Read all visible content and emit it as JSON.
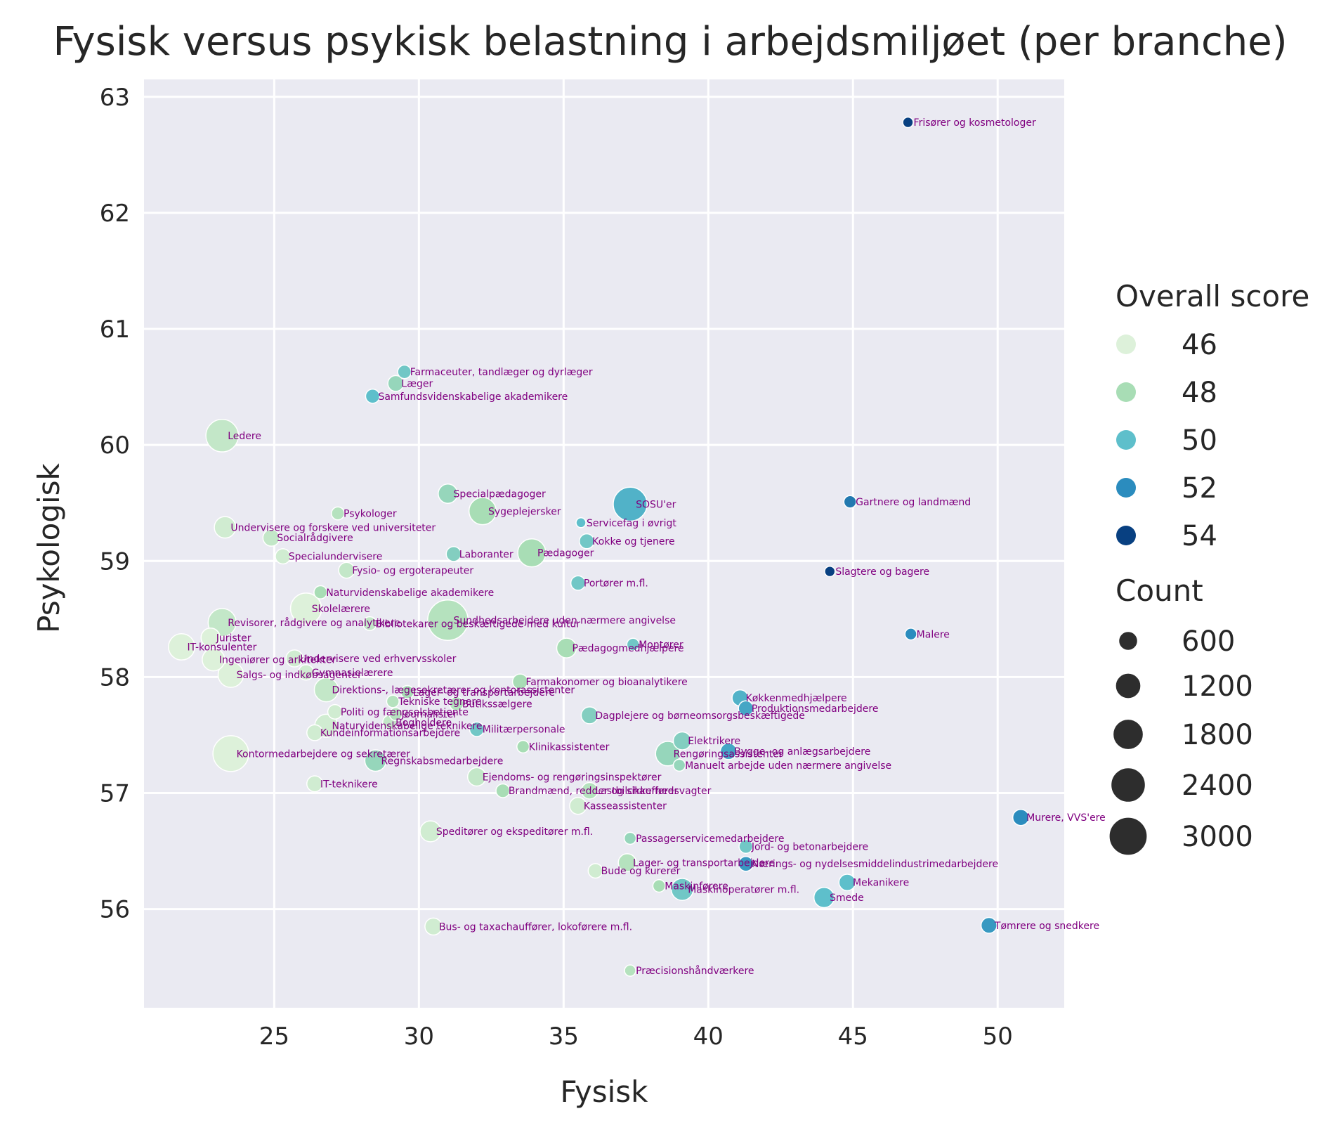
{
  "chart_data": {
    "type": "scatter",
    "title": "Fysisk versus psykisk belastning i arbejdsmiljøet (per branche)",
    "xlabel": "Fysisk",
    "ylabel": "Psykologisk",
    "xlim": [
      20.5,
      52.3
    ],
    "ylim": [
      55.15,
      63.15
    ],
    "xticks": [
      "25",
      "30",
      "35",
      "40",
      "45",
      "50"
    ],
    "yticks": [
      "56",
      "57",
      "58",
      "59",
      "60",
      "61",
      "62",
      "63"
    ],
    "grid": true,
    "legend_position": "right",
    "hue_title": "Overall score",
    "size_title": "Count",
    "hue_legend": [
      {
        "label": "46",
        "color": "#ddf1da"
      },
      {
        "label": "48",
        "color": "#a8ddb5"
      },
      {
        "label": "50",
        "color": "#5ebfcb"
      },
      {
        "label": "52",
        "color": "#2b8cbe"
      },
      {
        "label": "54",
        "color": "#084081"
      }
    ],
    "size_legend": [
      {
        "label": "600",
        "count": 600
      },
      {
        "label": "1200",
        "count": 1200
      },
      {
        "label": "1800",
        "count": 1800
      },
      {
        "label": "2400",
        "count": 2400
      },
      {
        "label": "3000",
        "count": 3000
      }
    ],
    "points": [
      {
        "label": "Frisører og kosmetologer",
        "x": 46.9,
        "y": 62.78,
        "score": 54.5,
        "count": 120
      },
      {
        "label": "Farmaceuter, tandlæger og dyrlæger",
        "x": 29.5,
        "y": 60.63,
        "score": 49.5,
        "count": 250
      },
      {
        "label": "Læger",
        "x": 29.2,
        "y": 60.53,
        "score": 48.5,
        "count": 380
      },
      {
        "label": "Samfundsvidenskabelige akademikere",
        "x": 28.4,
        "y": 60.42,
        "score": 50.0,
        "count": 280
      },
      {
        "label": "Ledere",
        "x": 23.2,
        "y": 60.08,
        "score": 47.0,
        "count": 2100
      },
      {
        "label": "Specialpædagoger",
        "x": 31.0,
        "y": 59.58,
        "score": 48.5,
        "count": 620
      },
      {
        "label": "SOSU'er",
        "x": 37.3,
        "y": 59.49,
        "score": 50.5,
        "count": 2300
      },
      {
        "label": "Gartnere og landmænd",
        "x": 44.9,
        "y": 59.51,
        "score": 52.5,
        "count": 200
      },
      {
        "label": "Sygeplejersker",
        "x": 32.2,
        "y": 59.43,
        "score": 48.0,
        "count": 1400
      },
      {
        "label": "Psykologer",
        "x": 27.2,
        "y": 59.41,
        "score": 47.5,
        "count": 220
      },
      {
        "label": "Servicefag i øvrigt",
        "x": 35.6,
        "y": 59.33,
        "score": 50.0,
        "count": 100
      },
      {
        "label": "Undervisere og forskere ved universiteter",
        "x": 23.3,
        "y": 59.29,
        "score": 46.5,
        "count": 800
      },
      {
        "label": "Socialrådgivere",
        "x": 24.9,
        "y": 59.2,
        "score": 47.0,
        "count": 440
      },
      {
        "label": "Kokke og tjenere",
        "x": 35.8,
        "y": 59.17,
        "score": 49.5,
        "count": 320
      },
      {
        "label": "Laboranter",
        "x": 31.2,
        "y": 59.06,
        "score": 49.0,
        "count": 320
      },
      {
        "label": "Pædagoger",
        "x": 33.9,
        "y": 59.07,
        "score": 48.0,
        "count": 1500
      },
      {
        "label": "Specialundervisere",
        "x": 25.3,
        "y": 59.04,
        "score": 46.5,
        "count": 340
      },
      {
        "label": "Slagtere og bagere",
        "x": 44.2,
        "y": 58.91,
        "score": 54.0,
        "count": 120
      },
      {
        "label": "Fysio- og ergoterapeuter",
        "x": 27.5,
        "y": 58.92,
        "score": 47.0,
        "count": 380
      },
      {
        "label": "Portører m.fl.",
        "x": 35.5,
        "y": 58.81,
        "score": 49.5,
        "count": 300
      },
      {
        "label": "Naturvidenskabelige akademikere",
        "x": 26.6,
        "y": 58.73,
        "score": 48.0,
        "count": 230
      },
      {
        "label": "Skolelærere",
        "x": 26.1,
        "y": 58.59,
        "score": 45.5,
        "count": 1900
      },
      {
        "label": "Sundhedsarbejdere uden nærmere angivelse",
        "x": 31.0,
        "y": 58.49,
        "score": 47.5,
        "count": 3400
      },
      {
        "label": "Revisorer, rådgivere og analytikere",
        "x": 23.2,
        "y": 58.47,
        "score": 47.0,
        "count": 1500
      },
      {
        "label": "Bibliotekarer og beskæftigede med kultur",
        "x": 28.3,
        "y": 58.46,
        "score": 47.0,
        "count": 260
      },
      {
        "label": "Malere",
        "x": 47.0,
        "y": 58.37,
        "score": 52.0,
        "count": 170
      },
      {
        "label": "Jurister",
        "x": 22.8,
        "y": 58.34,
        "score": 45.5,
        "count": 600
      },
      {
        "label": "Montører",
        "x": 37.4,
        "y": 58.28,
        "score": 49.5,
        "count": 200
      },
      {
        "label": "IT-konsulenter",
        "x": 21.8,
        "y": 58.26,
        "score": 45.5,
        "count": 1300
      },
      {
        "label": "Pædagogmedhjælpere",
        "x": 35.1,
        "y": 58.25,
        "score": 48.0,
        "count": 650
      },
      {
        "label": "Undervisere ved erhvervsskoler",
        "x": 25.7,
        "y": 58.16,
        "score": 46.5,
        "count": 450
      },
      {
        "label": "Ingeniører og arkitekter",
        "x": 22.9,
        "y": 58.15,
        "score": 46.0,
        "count": 900
      },
      {
        "label": "Gymnasielærere",
        "x": 26.1,
        "y": 58.04,
        "score": 46.5,
        "count": 350
      },
      {
        "label": "Salgs- og indkøbsagenter",
        "x": 23.5,
        "y": 58.02,
        "score": 45.5,
        "count": 1200
      },
      {
        "label": "Farmakonomer og bioanalytikere",
        "x": 33.5,
        "y": 57.96,
        "score": 48.0,
        "count": 350
      },
      {
        "label": "Direktions-, lægesekretærer og kontorassistenter",
        "x": 26.8,
        "y": 57.89,
        "score": 47.0,
        "count": 1050
      },
      {
        "label": "Lager- og transportarbejdere",
        "x": 29.6,
        "y": 57.87,
        "score": 48.0,
        "count": 230
      },
      {
        "label": "Køkkenmedhjælpere",
        "x": 41.1,
        "y": 57.82,
        "score": 50.5,
        "count": 400
      },
      {
        "label": "Tekniske tegnere",
        "x": 29.1,
        "y": 57.79,
        "score": 47.5,
        "count": 200
      },
      {
        "label": "Butikssælgere",
        "x": 31.3,
        "y": 57.77,
        "score": 47.5,
        "count": 280
      },
      {
        "label": "Produktionsmedarbejdere",
        "x": 41.3,
        "y": 57.73,
        "score": 51.0,
        "count": 330
      },
      {
        "label": "Politi og fængselsbetjente",
        "x": 27.1,
        "y": 57.7,
        "score": 46.5,
        "count": 300
      },
      {
        "label": "Journalister",
        "x": 29.2,
        "y": 57.68,
        "score": 47.5,
        "count": 220
      },
      {
        "label": "Dagplejere og børneomsorgsbeskæftigede",
        "x": 35.9,
        "y": 57.67,
        "score": 49.0,
        "count": 450
      },
      {
        "label": "Bogholdere",
        "x": 29.0,
        "y": 57.61,
        "score": 47.0,
        "count": 300
      },
      {
        "label": "Naturvidenskabelige teknikere",
        "x": 26.8,
        "y": 57.58,
        "score": 46.5,
        "count": 950
      },
      {
        "label": "Militærpersonale",
        "x": 32.0,
        "y": 57.55,
        "score": 49.5,
        "count": 300
      },
      {
        "label": "Kundeinformationsarbejdere",
        "x": 26.4,
        "y": 57.52,
        "score": 46.5,
        "count": 380
      },
      {
        "label": "Elektrikere",
        "x": 39.1,
        "y": 57.45,
        "score": 49.0,
        "count": 520
      },
      {
        "label": "Klinikassistenter",
        "x": 33.6,
        "y": 57.4,
        "score": 48.0,
        "count": 200
      },
      {
        "label": "Bygge- og anlægsarbejdere",
        "x": 40.7,
        "y": 57.36,
        "score": 51.0,
        "count": 420
      },
      {
        "label": "Rengøringsassistenter",
        "x": 38.6,
        "y": 57.34,
        "score": 48.5,
        "count": 1100
      },
      {
        "label": "Kontormedarbejdere og sekretærer",
        "x": 23.5,
        "y": 57.34,
        "score": 45.5,
        "count": 2600
      },
      {
        "label": "Regnskabsmedarbejdere",
        "x": 28.5,
        "y": 57.28,
        "score": 48.5,
        "count": 800
      },
      {
        "label": "Manuelt arbejde uden nærmere angivelse",
        "x": 39.0,
        "y": 57.24,
        "score": 48.5,
        "count": 180
      },
      {
        "label": "Ejendoms- og rengøringsinspektører",
        "x": 32.0,
        "y": 57.14,
        "score": 47.0,
        "count": 550
      },
      {
        "label": "IT-teknikere",
        "x": 26.4,
        "y": 57.08,
        "score": 46.5,
        "count": 380
      },
      {
        "label": "Brandmænd, redder og sikkerhedsvagter",
        "x": 32.9,
        "y": 57.02,
        "score": 48.0,
        "count": 260
      },
      {
        "label": "Lastbilchauffører",
        "x": 35.9,
        "y": 57.02,
        "score": 47.5,
        "count": 420
      },
      {
        "label": "Kasseassistenter",
        "x": 35.5,
        "y": 56.89,
        "score": 46.5,
        "count": 450
      },
      {
        "label": "Murere, VVS'ere",
        "x": 50.8,
        "y": 56.79,
        "score": 52.0,
        "count": 400
      },
      {
        "label": "Speditører og ekspeditører m.fl.",
        "x": 30.4,
        "y": 56.67,
        "score": 46.5,
        "count": 750
      },
      {
        "label": "Passagerservicemedarbejdere",
        "x": 37.3,
        "y": 56.61,
        "score": 48.5,
        "count": 180
      },
      {
        "label": "Jord- og betonarbejdere",
        "x": 41.3,
        "y": 56.54,
        "score": 49.5,
        "count": 260
      },
      {
        "label": "Lager- og transportarbejdere",
        "x": 37.2,
        "y": 56.4,
        "score": 47.5,
        "count": 520
      },
      {
        "label": "Nærings- og nydelsesmiddelindustrimedarbejdere",
        "x": 41.3,
        "y": 56.39,
        "score": 51.5,
        "count": 320
      },
      {
        "label": "Bude og kurerer",
        "x": 36.1,
        "y": 56.33,
        "score": 46.5,
        "count": 300
      },
      {
        "label": "Mekanikere",
        "x": 44.8,
        "y": 56.23,
        "score": 50.0,
        "count": 420
      },
      {
        "label": "Maskinførere",
        "x": 38.3,
        "y": 56.2,
        "score": 48.0,
        "count": 200
      },
      {
        "label": "Maskinoperatører m.fl.",
        "x": 39.1,
        "y": 56.17,
        "score": 49.5,
        "count": 850
      },
      {
        "label": "Smede",
        "x": 44.0,
        "y": 56.1,
        "score": 50.0,
        "count": 700
      },
      {
        "label": "Tømrere og snedkere",
        "x": 49.7,
        "y": 55.86,
        "score": 51.5,
        "count": 380
      },
      {
        "label": "Bus- og taxachauffører, lokoførere m.fl.",
        "x": 30.5,
        "y": 55.85,
        "score": 46.5,
        "count": 450
      },
      {
        "label": "Præcisionshåndværkere",
        "x": 37.3,
        "y": 55.47,
        "score": 47.5,
        "count": 150
      }
    ]
  }
}
